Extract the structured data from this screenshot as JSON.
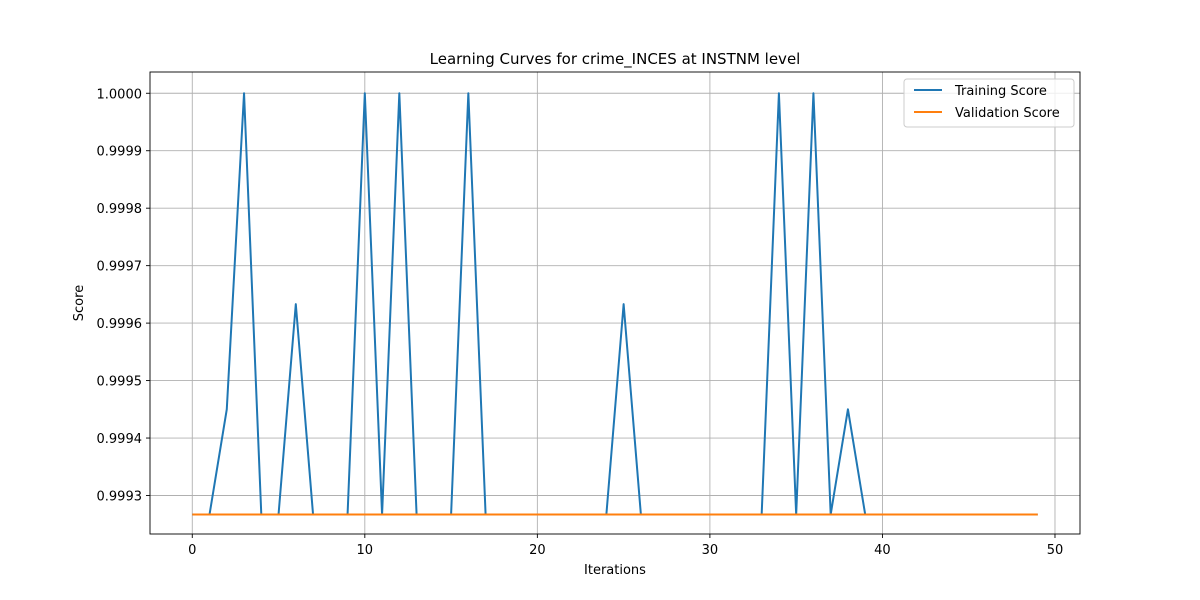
{
  "chart_data": {
    "type": "line",
    "title": "Learning Curves for crime_INCES at INSTNM level",
    "xlabel": "Iterations",
    "ylabel": "Score",
    "xlim": [
      -2.45,
      51.45
    ],
    "ylim": [
      0.999233,
      1.000037
    ],
    "xticks": [
      0,
      10,
      20,
      30,
      40,
      50
    ],
    "yticks": [
      0.9993,
      0.9994,
      0.9995,
      0.9996,
      0.9997,
      0.9998,
      0.9999,
      1.0
    ],
    "ytick_labels": [
      "0.9993",
      "0.9994",
      "0.9995",
      "0.9996",
      "0.9997",
      "0.9998",
      "0.9999",
      "1.0000"
    ],
    "grid": true,
    "legend": "top-right",
    "x": [
      0,
      1,
      2,
      3,
      4,
      5,
      6,
      7,
      8,
      9,
      10,
      11,
      12,
      13,
      14,
      15,
      16,
      17,
      18,
      19,
      20,
      21,
      22,
      23,
      24,
      25,
      26,
      27,
      28,
      29,
      30,
      31,
      32,
      33,
      34,
      35,
      36,
      37,
      38,
      39,
      40,
      41,
      42,
      43,
      44,
      45,
      46,
      47,
      48,
      49
    ],
    "series": [
      {
        "name": "Training Score",
        "color": "#1f77b4",
        "values": [
          0.999267,
          0.999267,
          0.99945,
          1.0,
          0.999267,
          0.999267,
          0.999633,
          0.999267,
          0.999267,
          0.999267,
          1.0,
          0.999267,
          1.0,
          0.999267,
          0.999267,
          0.999267,
          1.0,
          0.999267,
          0.999267,
          0.999267,
          0.999267,
          0.999267,
          0.999267,
          0.999267,
          0.999267,
          0.999633,
          0.999267,
          0.999267,
          0.999267,
          0.999267,
          0.999267,
          0.999267,
          0.999267,
          0.999267,
          1.0,
          0.999267,
          1.0,
          0.999267,
          0.99945,
          0.999267,
          0.999267,
          0.999267,
          0.999267,
          0.999267,
          0.999267,
          0.999267,
          0.999267,
          0.999267,
          0.999267,
          0.999267
        ]
      },
      {
        "name": "Validation Score",
        "color": "#ff7f0e",
        "values": [
          0.999267,
          0.999267,
          0.999267,
          0.999267,
          0.999267,
          0.999267,
          0.999267,
          0.999267,
          0.999267,
          0.999267,
          0.999267,
          0.999267,
          0.999267,
          0.999267,
          0.999267,
          0.999267,
          0.999267,
          0.999267,
          0.999267,
          0.999267,
          0.999267,
          0.999267,
          0.999267,
          0.999267,
          0.999267,
          0.999267,
          0.999267,
          0.999267,
          0.999267,
          0.999267,
          0.999267,
          0.999267,
          0.999267,
          0.999267,
          0.999267,
          0.999267,
          0.999267,
          0.999267,
          0.999267,
          0.999267,
          0.999267,
          0.999267,
          0.999267,
          0.999267,
          0.999267,
          0.999267,
          0.999267,
          0.999267,
          0.999267,
          0.999267
        ]
      }
    ]
  }
}
